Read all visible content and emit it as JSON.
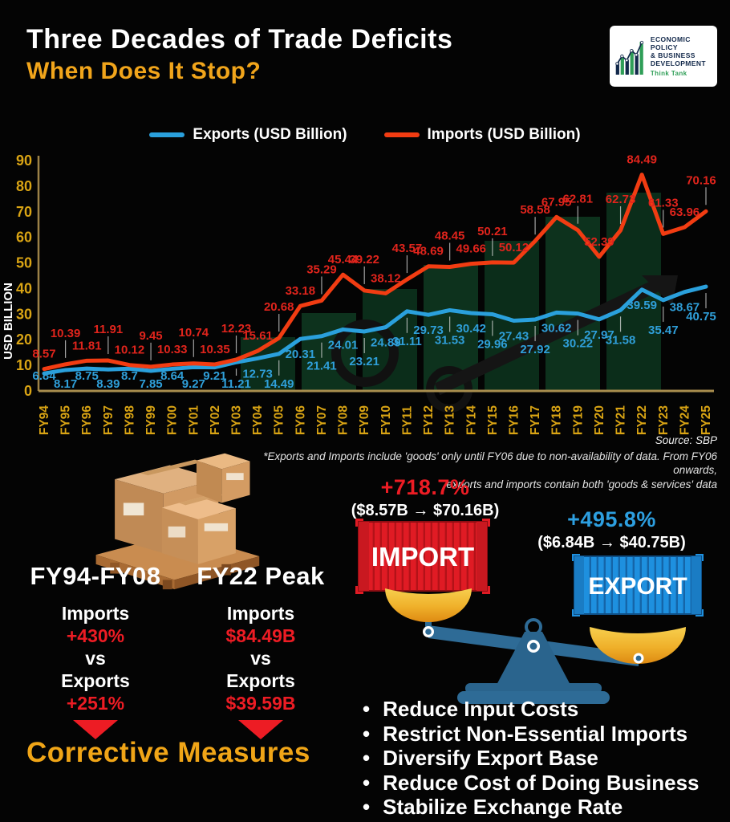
{
  "header": {
    "title": "Three Decades of Trade Deficits",
    "subtitle": "When Does It Stop?",
    "logo": {
      "line1": "ECONOMIC POLICY",
      "line2": "& BUSINESS",
      "line3": "DEVELOPMENT",
      "tagline": "Think Tank"
    }
  },
  "chart_data": {
    "type": "line",
    "title": "",
    "categories": [
      "FY94",
      "FY95",
      "FY96",
      "FY97",
      "FY98",
      "FY99",
      "FY00",
      "FY01",
      "FY02",
      "FY03",
      "FY04",
      "FY05",
      "FY06",
      "FY07",
      "FY08",
      "FY09",
      "FY10",
      "FY11",
      "FY12",
      "FY13",
      "FY14",
      "FY15",
      "FY16",
      "FY17",
      "FY18",
      "FY19",
      "FY20",
      "FY21",
      "FY22",
      "FY23",
      "FY24",
      "FY25"
    ],
    "series": [
      {
        "name": "Exports (USD Billion)",
        "color": "#2aa0dc",
        "label_color": "#2f9fd9",
        "values": [
          6.84,
          8.17,
          8.75,
          8.39,
          8.7,
          7.85,
          8.64,
          9.27,
          9.21,
          11.21,
          12.73,
          14.49,
          20.31,
          21.41,
          24.01,
          23.21,
          24.89,
          31.11,
          29.73,
          31.53,
          30.42,
          29.96,
          27.43,
          27.92,
          30.62,
          30.22,
          27.97,
          31.58,
          39.59,
          35.47,
          38.67,
          40.75
        ]
      },
      {
        "name": "Imports (USD Billion)",
        "color": "#f23c12",
        "label_color": "#e0241c",
        "values": [
          8.57,
          10.39,
          11.81,
          11.91,
          10.12,
          9.45,
          10.33,
          10.74,
          10.35,
          12.23,
          15.61,
          20.68,
          33.18,
          35.29,
          45.44,
          39.22,
          38.12,
          43.57,
          48.69,
          48.45,
          49.66,
          50.21,
          50.12,
          58.58,
          67.95,
          62.81,
          52.39,
          62.73,
          84.49,
          61.33,
          63.96,
          70.16
        ]
      }
    ],
    "xlabel": "",
    "ylabel": "USD BILLION",
    "ylim": [
      0,
      90
    ],
    "yticks": [
      0,
      10,
      20,
      30,
      40,
      50,
      60,
      70,
      80,
      90
    ],
    "legend_position": "top",
    "grid": false
  },
  "chart_notes": {
    "source": "Source: SBP",
    "footnote_line1": "*Exports and Imports include 'goods' only until FY06 due to non-availability of data. From FY06 onwards,",
    "footnote_line2": "exports and imports contain both 'goods & services' data"
  },
  "stats": {
    "period_block": {
      "title": "FY94-FY08",
      "label1": "Imports",
      "value1": "+430%",
      "vs": "vs",
      "label2": "Exports",
      "value2": "+251%"
    },
    "peak_block": {
      "title": "FY22 Peak",
      "label1": "Imports",
      "value1": "$84.49B",
      "vs": "vs",
      "label2": "Exports",
      "value2": "$39.59B"
    },
    "import_growth": {
      "pct": "+718.7%",
      "range": "($8.57B → $70.16B)",
      "container_label": "IMPORT"
    },
    "export_growth": {
      "pct": "+495.8%",
      "range": "($6.84B → $40.75B)",
      "container_label": "EXPORT"
    }
  },
  "measures": {
    "title": "Corrective Measures",
    "items": [
      "Reduce Input Costs",
      "Restrict Non-Essential Imports",
      "Diversify Export Base",
      "Reduce Cost of Doing Business",
      "Stabilize Exchange Rate"
    ]
  },
  "colors": {
    "accent_gold": "#f0a517",
    "import_red": "#ed1c24",
    "export_blue": "#2d9fe0",
    "axis_gold": "#d9a414"
  }
}
